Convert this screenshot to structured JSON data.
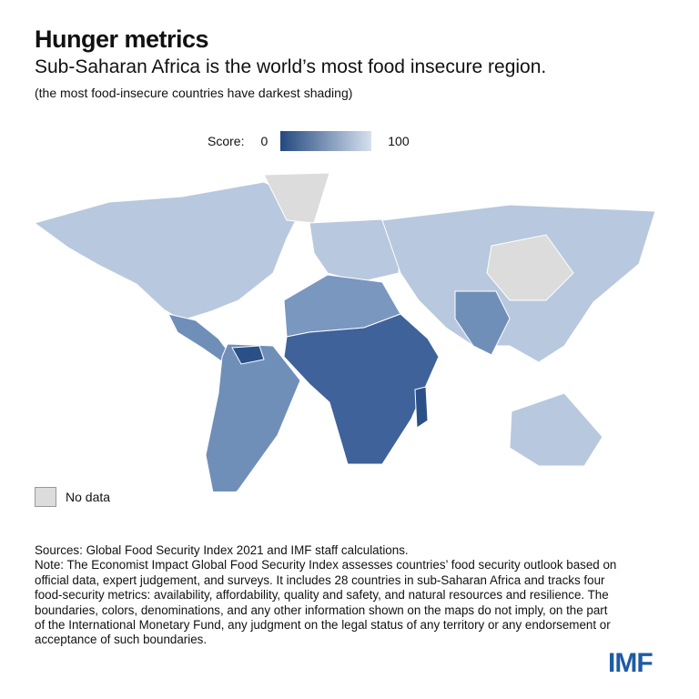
{
  "header": {
    "title": "Hunger metrics",
    "subtitle": "Sub-Saharan Africa is the world’s most food insecure region.",
    "note": "(the most food-insecure countries have darkest shading)"
  },
  "legend": {
    "label": "Score:",
    "min": "0",
    "max": "100",
    "color_min": "#24497f",
    "color_max": "#d6e0ee",
    "no_data_label": "No data",
    "no_data_color": "#dcdcdc"
  },
  "map": {
    "regions": [
      {
        "name": "North America",
        "shade": "light"
      },
      {
        "name": "Greenland",
        "shade": "nodata"
      },
      {
        "name": "Central America",
        "shade": "mid"
      },
      {
        "name": "South America",
        "shade": "mid"
      },
      {
        "name": "Europe",
        "shade": "light"
      },
      {
        "name": "North Africa",
        "shade": "mid"
      },
      {
        "name": "Sub-Saharan Africa",
        "shade": "dark"
      },
      {
        "name": "Asia",
        "shade": "light"
      },
      {
        "name": "South Asia",
        "shade": "mid"
      },
      {
        "name": "Australia",
        "shade": "light"
      }
    ]
  },
  "footer": {
    "sources": "Sources: Global Food Security Index 2021 and IMF staff calculations.",
    "note": "Note: The Economist Impact Global Food Security Index assesses countries’ food security outlook based on official data, expert judgement, and surveys. It includes 28 countries in sub-Saharan Africa and tracks four food-security metrics: availability, affordability, quality and safety, and natural resources and resilience. The boundaries, colors, denominations, and any other information shown on the maps do not imply, on the part of the International Monetary Fund, any judgment on the legal status of any territory or any endorsement or acceptance of such boundaries."
  },
  "logo": "IMF"
}
